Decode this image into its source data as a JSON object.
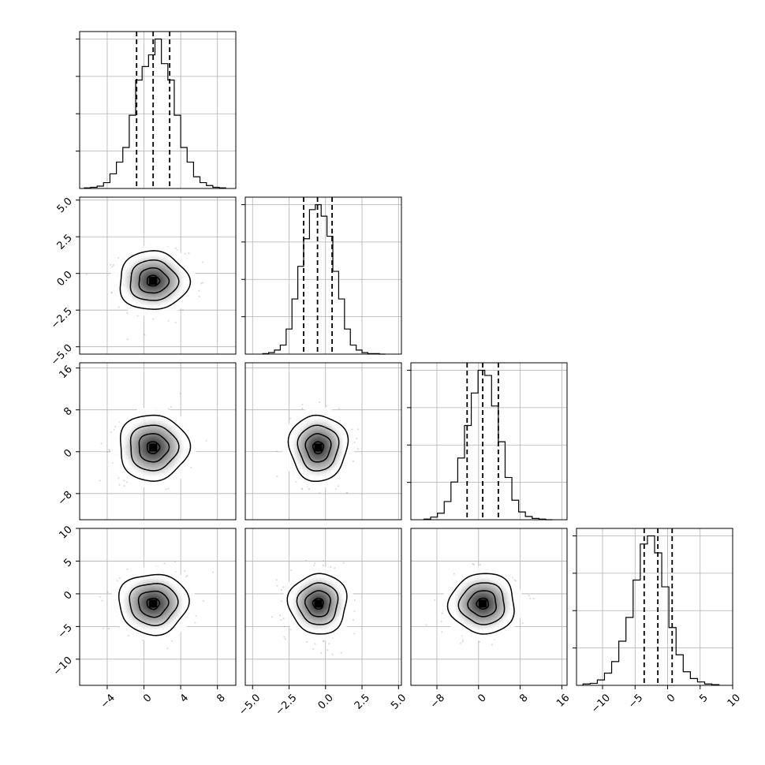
{
  "chart_data": {
    "type": "corner",
    "title": "",
    "grid": true,
    "params": [
      {
        "range": [
          -7,
          10
        ],
        "ticks": [
          -4,
          0,
          4,
          8
        ],
        "tick_labels": [
          "−4",
          "0",
          "4",
          "8"
        ],
        "center": 1.0,
        "sigma": 1.8,
        "quantiles": [
          -0.8,
          1.0,
          2.8
        ],
        "hist": {
          "edges": [
            -6.5,
            -5.8,
            -5.1,
            -4.4,
            -3.7,
            -3.0,
            -2.3,
            -1.6,
            -0.9,
            -0.2,
            0.5,
            1.2,
            1.9,
            2.6,
            3.3,
            4.0,
            4.7,
            5.4,
            6.1,
            6.8,
            7.5,
            8.2,
            8.9
          ],
          "counts": [
            1,
            2,
            4,
            10,
            25,
            45,
            70,
            125,
            185,
            208,
            228,
            255,
            213,
            185,
            125,
            70,
            45,
            20,
            10,
            5,
            2,
            1
          ]
        }
      },
      {
        "range": [
          -5.5,
          5.2
        ],
        "ticks": [
          -5.0,
          -2.5,
          0.0,
          2.5,
          5.0
        ],
        "tick_labels": [
          "−5.0",
          "−2.5",
          "0.0",
          "2.5",
          "5.0"
        ],
        "center": -0.5,
        "sigma": 0.95,
        "quantiles": [
          -1.5,
          -0.55,
          0.45
        ],
        "hist": {
          "edges": [
            -4.3,
            -3.9,
            -3.5,
            -3.1,
            -2.7,
            -2.3,
            -1.9,
            -1.5,
            -1.1,
            -0.7,
            -0.3,
            0.1,
            0.5,
            0.9,
            1.3,
            1.7,
            2.1,
            2.5,
            2.9,
            3.3,
            3.7,
            4.1
          ],
          "counts": [
            1,
            3,
            8,
            18,
            50,
            110,
            175,
            230,
            288,
            298,
            275,
            235,
            165,
            110,
            50,
            18,
            8,
            3,
            1,
            1,
            0
          ]
        }
      },
      {
        "range": [
          -13,
          17
        ],
        "ticks": [
          -8,
          0,
          8,
          16
        ],
        "tick_labels": [
          "−8",
          "0",
          "8",
          "16"
        ],
        "center": 0.8,
        "sigma": 3.0,
        "quantiles": [
          -2.2,
          0.8,
          3.8
        ],
        "hist": {
          "edges": [
            -10.5,
            -9.2,
            -7.9,
            -6.6,
            -5.3,
            -4.0,
            -2.7,
            -1.4,
            -0.1,
            1.2,
            2.5,
            3.8,
            5.1,
            6.4,
            7.7,
            9.0,
            10.3,
            11.6,
            12.9,
            14.2
          ],
          "counts": [
            1,
            4,
            10,
            28,
            58,
            95,
            145,
            195,
            230,
            222,
            175,
            120,
            65,
            30,
            12,
            5,
            2,
            1,
            0
          ]
        }
      },
      {
        "range": [
          -14,
          10
        ],
        "ticks": [
          -10,
          -5,
          0,
          5,
          10
        ],
        "tick_labels": [
          "−10",
          "−5",
          "0",
          "5",
          "10"
        ],
        "center": -1.5,
        "sigma": 2.2,
        "quantiles": [
          -3.6,
          -1.5,
          0.7
        ],
        "hist": {
          "edges": [
            -13.0,
            -11.9,
            -10.8,
            -9.7,
            -8.6,
            -7.5,
            -6.4,
            -5.3,
            -4.2,
            -3.1,
            -2.0,
            -0.9,
            0.2,
            1.3,
            2.4,
            3.5,
            4.6,
            5.7,
            6.8,
            7.9
          ],
          "counts": [
            2,
            3,
            8,
            18,
            35,
            65,
            100,
            155,
            208,
            220,
            195,
            145,
            85,
            45,
            20,
            10,
            5,
            2,
            1
          ]
        }
      }
    ]
  }
}
